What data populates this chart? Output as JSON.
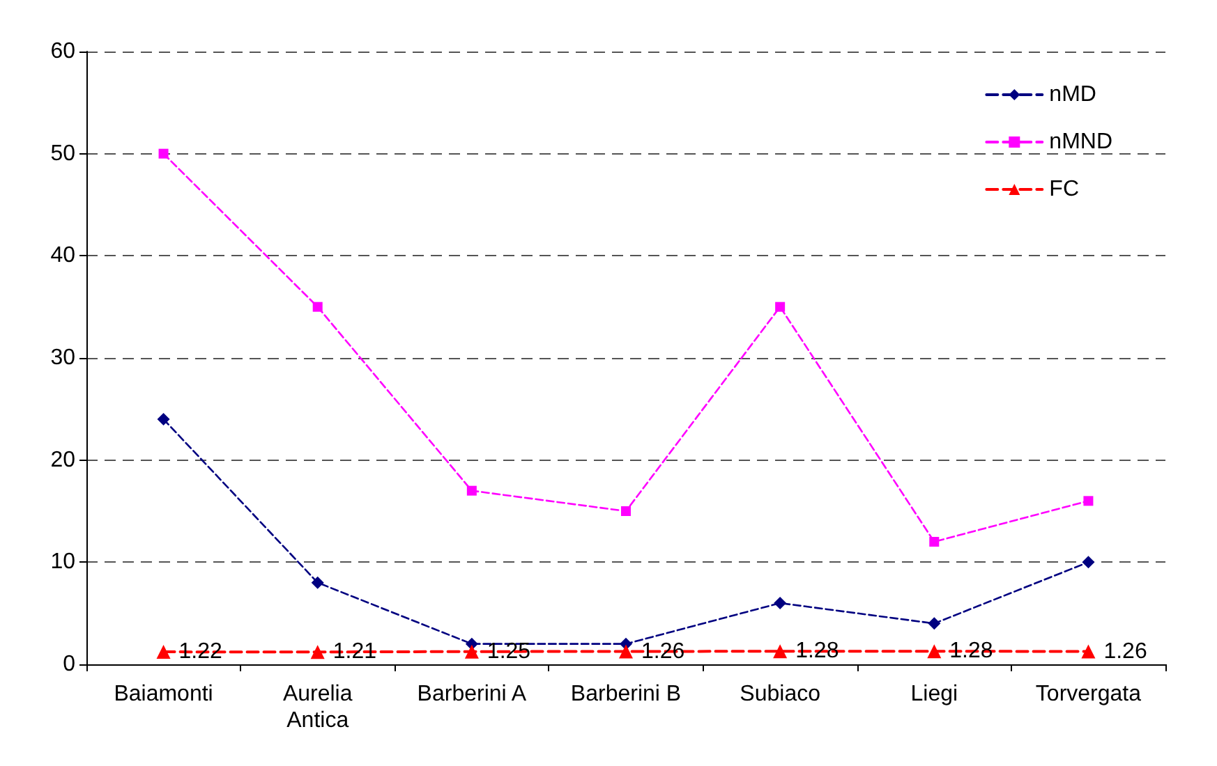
{
  "chart_data": {
    "type": "line",
    "categories": [
      "Baiamonti",
      "Aurelia\nAntica",
      "Barberini A",
      "Barberini B",
      "Subiaco",
      "Liegi",
      "Torvergata"
    ],
    "series": [
      {
        "name": "nMD",
        "color": "#000080",
        "marker": "diamond",
        "line_style": "dashed",
        "values": [
          24,
          8,
          2,
          2,
          6,
          4,
          10
        ]
      },
      {
        "name": "nMND",
        "color": "#ff00ff",
        "marker": "square",
        "line_style": "dashed",
        "values": [
          50,
          35,
          17,
          15,
          35,
          12,
          16
        ]
      },
      {
        "name": "FC",
        "color": "#ff0000",
        "marker": "triangle",
        "line_style": "dashed",
        "values": [
          1.22,
          1.21,
          1.25,
          1.26,
          1.28,
          1.28,
          1.26
        ],
        "value_labels": [
          "1.22",
          "1.21",
          "1.25",
          "1.26",
          "1.28",
          "1.28",
          "1.26"
        ]
      }
    ],
    "ylim": [
      0,
      60
    ],
    "yticks": [
      0,
      10,
      20,
      30,
      40,
      50,
      60
    ],
    "grid": "y",
    "legend": "top right"
  }
}
